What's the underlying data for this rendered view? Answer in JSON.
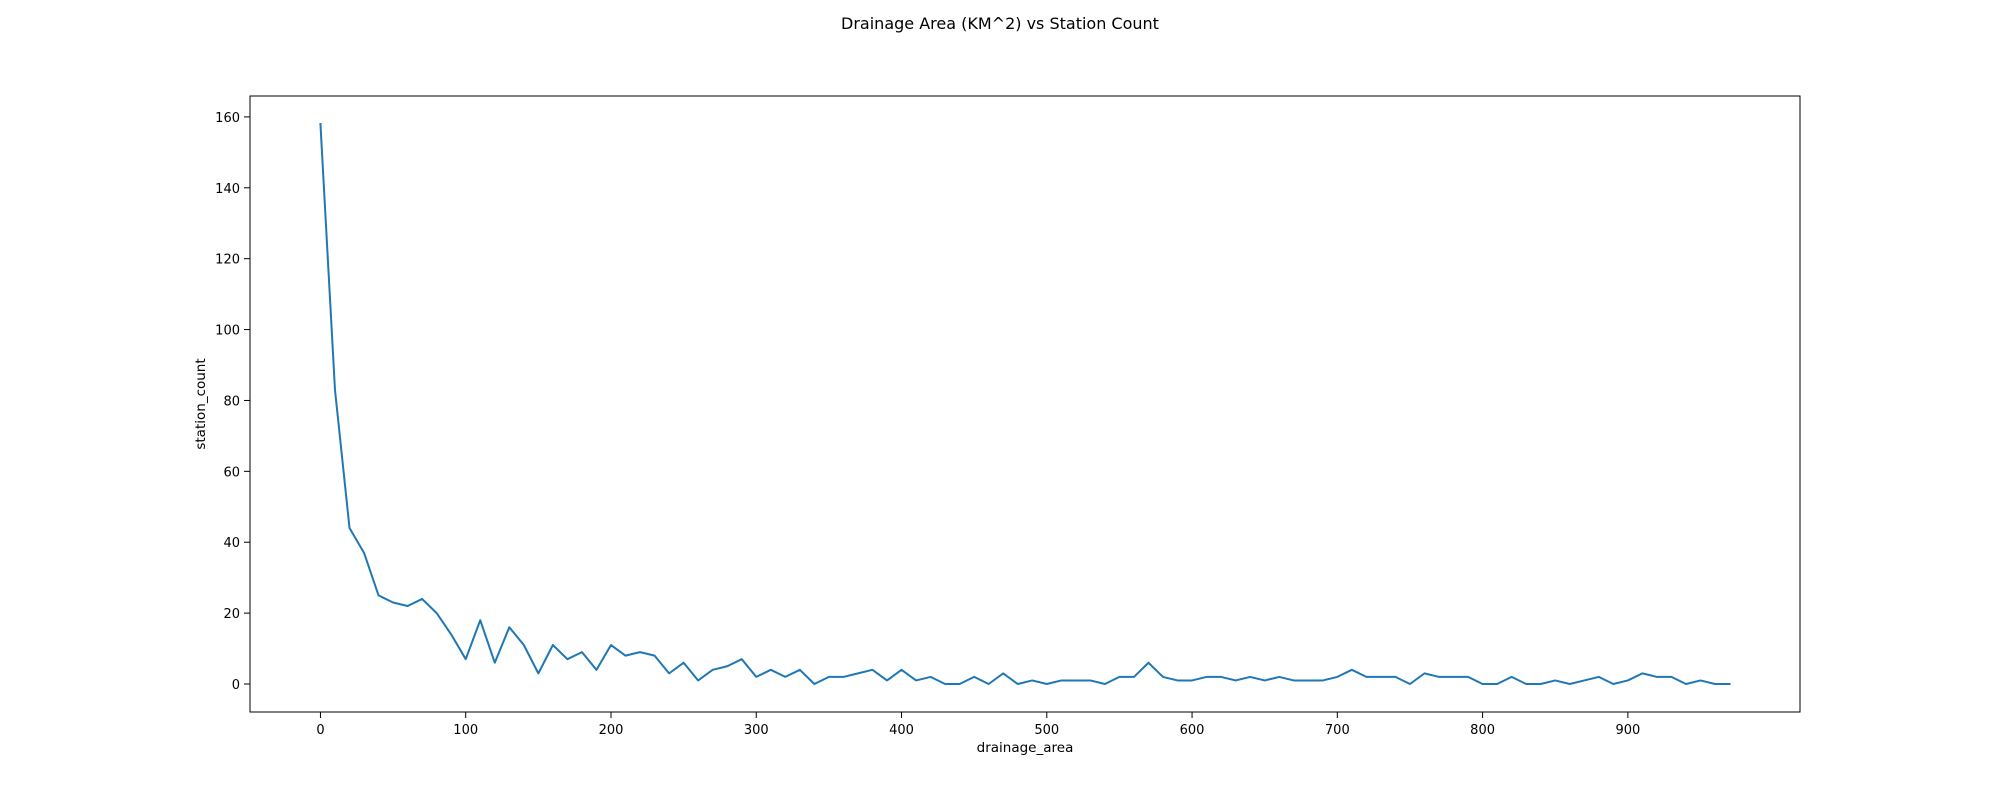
{
  "chart_data": {
    "type": "line",
    "title": "Drainage Area (KM^2) vs Station Count",
    "xlabel": "drainage_area",
    "ylabel": "station_count",
    "xlim": [
      -48.5,
      1018.5
    ],
    "ylim": [
      -7.9,
      165.9
    ],
    "xticks": [
      0,
      100,
      200,
      300,
      400,
      500,
      600,
      700,
      800,
      900
    ],
    "yticks": [
      0,
      20,
      40,
      60,
      80,
      100,
      120,
      140,
      160
    ],
    "grid": false,
    "legend": "none",
    "line_color": "#1f77b4",
    "series": [
      {
        "x": [
          0,
          10,
          20,
          30,
          40,
          50,
          60,
          70,
          80,
          90,
          100,
          110,
          120,
          130,
          140,
          150,
          160,
          170,
          180,
          190,
          200,
          210,
          220,
          230,
          240,
          250,
          260,
          270,
          280,
          290,
          300,
          310,
          320,
          330,
          340,
          350,
          360,
          370,
          380,
          390,
          400,
          410,
          420,
          430,
          440,
          450,
          460,
          470,
          480,
          490,
          500,
          510,
          520,
          530,
          540,
          550,
          560,
          570,
          580,
          590,
          600,
          610,
          620,
          630,
          640,
          650,
          660,
          670,
          680,
          690,
          700,
          710,
          720,
          730,
          740,
          750,
          760,
          770,
          780,
          790,
          800,
          810,
          820,
          830,
          840,
          850,
          860,
          870,
          880,
          890,
          900,
          910,
          920,
          930,
          940,
          950,
          960,
          970
        ],
        "values": [
          158,
          83,
          44,
          37,
          25,
          23,
          22,
          24,
          20,
          14,
          7,
          18,
          6,
          16,
          11,
          3,
          11,
          7,
          9,
          4,
          11,
          8,
          9,
          8,
          3,
          6,
          1,
          4,
          5,
          7,
          2,
          4,
          2,
          4,
          0,
          2,
          2,
          3,
          4,
          1,
          4,
          1,
          2,
          0,
          0,
          2,
          0,
          3,
          0,
          1,
          0,
          1,
          1,
          1,
          0,
          2,
          2,
          6,
          2,
          1,
          1,
          2,
          2,
          1,
          2,
          1,
          2,
          1,
          1,
          1,
          2,
          4,
          2,
          2,
          2,
          0,
          3,
          2,
          2,
          2,
          0,
          0,
          2,
          0,
          0,
          1,
          0,
          1,
          2,
          0,
          1,
          3,
          2,
          2,
          0,
          1,
          0,
          0
        ]
      }
    ]
  }
}
